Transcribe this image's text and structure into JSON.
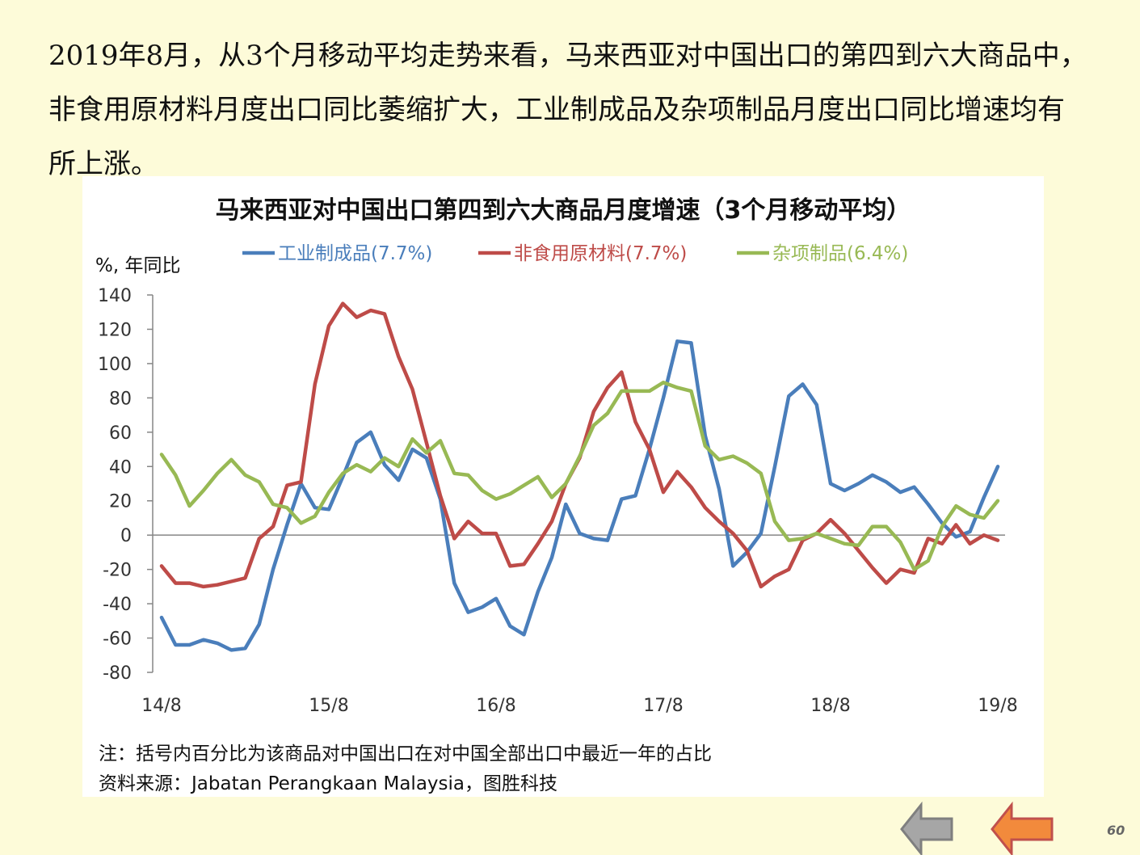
{
  "intro_text": "2019年8月，从3个月移动平均走势来看，马来西亚对中国出口的第四到六大商品中，非食用原材料月度出口同比萎缩扩大，工业制成品及杂项制品月度出口同比增速均有所上涨。",
  "page_number": "60",
  "navigation": {
    "back_icon": "left-arrow-gray-icon",
    "prev_icon": "left-arrow-orange-icon"
  },
  "chart_data": {
    "type": "line",
    "title": "马来西亚对中国出口第四到六大商品月度增速（3个月移动平均）",
    "ylabel": "%, 年同比",
    "xlabel": "",
    "ylim": [
      -80,
      140
    ],
    "yticks": [
      -80,
      -60,
      -40,
      -20,
      0,
      20,
      40,
      60,
      80,
      100,
      120,
      140
    ],
    "x_tick_labels": [
      "14/8",
      "15/8",
      "16/8",
      "17/8",
      "18/8",
      "19/8"
    ],
    "categories": [
      "14/8",
      "14/9",
      "14/10",
      "14/11",
      "14/12",
      "15/1",
      "15/2",
      "15/3",
      "15/4",
      "15/5",
      "15/6",
      "15/7",
      "15/8",
      "15/9",
      "15/10",
      "15/11",
      "15/12",
      "16/1",
      "16/2",
      "16/3",
      "16/4",
      "16/5",
      "16/6",
      "16/7",
      "16/8",
      "16/9",
      "16/10",
      "16/11",
      "16/12",
      "17/1",
      "17/2",
      "17/3",
      "17/4",
      "17/5",
      "17/6",
      "17/7",
      "17/8",
      "17/9",
      "17/10",
      "17/11",
      "17/12",
      "18/1",
      "18/2",
      "18/3",
      "18/4",
      "18/5",
      "18/6",
      "18/7",
      "18/8",
      "18/9",
      "18/10",
      "18/11",
      "18/12",
      "19/1",
      "19/2",
      "19/3",
      "19/4",
      "19/5",
      "19/6",
      "19/7",
      "19/8"
    ],
    "legend_position": "top",
    "grid": false,
    "series": [
      {
        "name": "工业制成品(7.7%)",
        "color": "#4a7ebb",
        "values": [
          -48,
          -64,
          -64,
          -61,
          -63,
          -67,
          -66,
          -52,
          -20,
          6,
          30,
          16,
          15,
          34,
          54,
          60,
          41,
          32,
          50,
          45,
          21,
          -28,
          -45,
          -42,
          -37,
          -53,
          -58,
          -33,
          -13,
          18,
          1,
          -2,
          -3,
          21,
          23,
          50,
          80,
          113,
          112,
          58,
          27,
          -18,
          -10,
          1,
          40,
          81,
          88,
          76,
          30,
          26,
          30,
          35,
          31,
          25,
          28,
          18,
          7,
          -1,
          2,
          22,
          40
        ]
      },
      {
        "name": "非食用原材料(7.7%)",
        "color": "#be4b48",
        "values": [
          -18,
          -28,
          -28,
          -30,
          -29,
          -27,
          -25,
          -2,
          5,
          29,
          31,
          88,
          122,
          135,
          127,
          131,
          129,
          104,
          85,
          54,
          23,
          -2,
          8,
          1,
          1,
          -18,
          -17,
          -5,
          8,
          30,
          45,
          72,
          86,
          95,
          66,
          50,
          25,
          37,
          28,
          16,
          8,
          1,
          -9,
          -30,
          -24,
          -20,
          -3,
          1,
          9,
          1,
          -9,
          -19,
          -28,
          -20,
          -22,
          -2,
          -5,
          6,
          -5,
          0,
          -3
        ]
      },
      {
        "name": "杂项制品(6.4%)",
        "color": "#98b954",
        "values": [
          47,
          35,
          17,
          26,
          36,
          44,
          35,
          31,
          18,
          16,
          7,
          11,
          25,
          36,
          41,
          37,
          45,
          40,
          56,
          48,
          55,
          36,
          35,
          26,
          21,
          24,
          29,
          34,
          22,
          30,
          46,
          64,
          71,
          84,
          84,
          84,
          89,
          86,
          84,
          52,
          44,
          46,
          42,
          36,
          8,
          -3,
          -2,
          1,
          -2,
          -5,
          -6,
          5,
          5,
          -4,
          -20,
          -15,
          5,
          17,
          12,
          10,
          20
        ]
      }
    ],
    "notes": [
      "注：括号内百分比为该商品对中国出口在对中国全部出口中最近一年的占比",
      "资料来源：Jabatan Perangkaan Malaysia，图胜科技"
    ]
  }
}
